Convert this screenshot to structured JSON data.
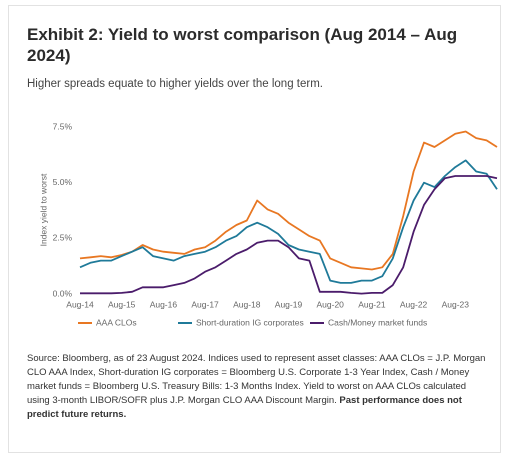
{
  "chart_data": {
    "type": "line",
    "title": "Exhibit 2: Yield to worst comparison (Aug 2014 – Aug 2024)",
    "subtitle": "Higher spreads equate to higher yields over the long term.",
    "y_label": "Index yield to worst",
    "categories": [
      "Aug-14",
      null,
      null,
      null,
      "Aug-15",
      null,
      null,
      null,
      "Aug-16",
      null,
      null,
      null,
      "Aug-17",
      null,
      null,
      null,
      "Aug-18",
      null,
      null,
      null,
      "Aug-19",
      null,
      null,
      null,
      "Aug-20",
      null,
      null,
      null,
      "Aug-21",
      null,
      null,
      null,
      "Aug-22",
      null,
      null,
      null,
      "Aug-23",
      null,
      null,
      null,
      null
    ],
    "ylim": [
      0,
      7.5
    ],
    "yticks": [
      {
        "value": 0,
        "label": "0.0%"
      },
      {
        "value": 2.5,
        "label": "2.5%"
      },
      {
        "value": 5,
        "label": "5.0%"
      },
      {
        "value": 7.5,
        "label": "7.5%"
      }
    ],
    "grid": false,
    "legend": "bottom",
    "series": [
      {
        "name": "AAA CLOs",
        "color": "#e87722",
        "values": [
          1.6,
          1.65,
          1.7,
          1.65,
          1.75,
          1.9,
          2.2,
          2.0,
          1.9,
          1.85,
          1.8,
          2.0,
          2.1,
          2.4,
          2.8,
          3.1,
          3.3,
          4.2,
          3.8,
          3.6,
          3.2,
          2.9,
          2.6,
          2.4,
          1.6,
          1.4,
          1.2,
          1.15,
          1.1,
          1.2,
          1.8,
          3.5,
          5.5,
          6.8,
          6.6,
          6.9,
          7.2,
          7.3,
          7.0,
          6.9,
          6.6
        ]
      },
      {
        "name": "Short-duration IG corporates",
        "color": "#1f7a99",
        "values": [
          1.2,
          1.4,
          1.5,
          1.5,
          1.7,
          1.9,
          2.1,
          1.7,
          1.6,
          1.5,
          1.7,
          1.8,
          1.9,
          2.1,
          2.4,
          2.6,
          3.0,
          3.2,
          3.0,
          2.7,
          2.2,
          2.0,
          1.9,
          1.8,
          0.6,
          0.5,
          0.5,
          0.6,
          0.6,
          0.8,
          1.6,
          3.0,
          4.2,
          5.0,
          4.8,
          5.3,
          5.7,
          6.0,
          5.5,
          5.4,
          4.7
        ]
      },
      {
        "name": "Cash/Money market funds",
        "color": "#4b1c6b",
        "values": [
          0.03,
          0.03,
          0.03,
          0.03,
          0.05,
          0.1,
          0.3,
          0.3,
          0.3,
          0.4,
          0.5,
          0.7,
          1.0,
          1.2,
          1.5,
          1.8,
          2.0,
          2.3,
          2.4,
          2.4,
          2.1,
          1.6,
          1.5,
          0.1,
          0.1,
          0.1,
          0.05,
          0.02,
          0.05,
          0.05,
          0.4,
          1.2,
          2.8,
          4.0,
          4.7,
          5.2,
          5.3,
          5.3,
          5.3,
          5.3,
          5.2
        ]
      }
    ]
  },
  "footnote": "Source: Bloomberg, as of 23 August 2024. Indices used to represent asset classes: AAA CLOs = J.P. Morgan CLO AAA Index, Short-duration IG corporates = Bloomberg U.S. Corporate 1-3 Year Index, Cash / Money market funds = Bloomberg U.S. Treasury Bills: 1-3 Months Index. Yield to worst on AAA CLOs calculated using 3-month LIBOR/SOFR plus J.P. Morgan CLO AAA Discount Margin.",
  "footnote_bold": "Past performance does not predict future returns."
}
